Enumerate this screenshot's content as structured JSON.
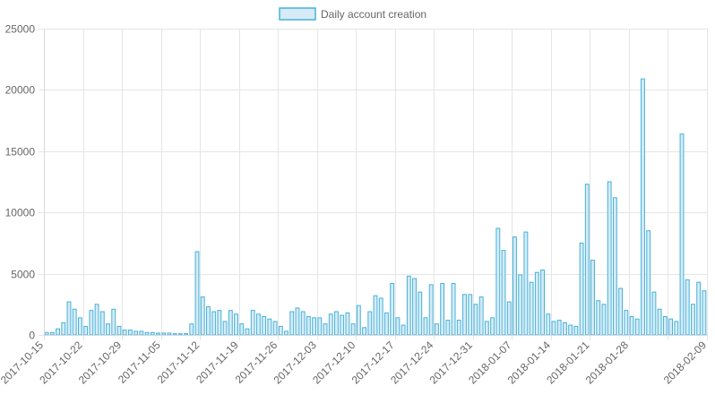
{
  "chart_data": {
    "type": "bar",
    "legend": {
      "position": "top",
      "label": "Daily account creation"
    },
    "colors": {
      "bar_fill": "#d6ebf7",
      "bar_stroke": "#45b2d9",
      "grid": "#e5e5e5",
      "text": "#666666"
    },
    "grid": true,
    "start_date": "2017-10-15",
    "x_tick_labels": [
      "2017-10-15",
      "2017-10-22",
      "2017-10-29",
      "2017-11-05",
      "2017-11-12",
      "2017-11-19",
      "2017-11-26",
      "2017-12-03",
      "2017-12-10",
      "2017-12-17",
      "2017-12-24",
      "2017-12-31",
      "2018-01-07",
      "2018-01-14",
      "2018-01-21",
      "2018-01-28",
      "2018-02-09"
    ],
    "ylim": [
      0,
      25000
    ],
    "y_ticks": [
      "0",
      "5000",
      "10000",
      "15000",
      "20000",
      "25000"
    ],
    "values": [
      200,
      200,
      500,
      1000,
      2700,
      2100,
      1400,
      700,
      2000,
      2500,
      1900,
      900,
      2100,
      700,
      400,
      400,
      300,
      300,
      200,
      200,
      150,
      150,
      150,
      100,
      100,
      100,
      900,
      6800,
      3100,
      2300,
      1900,
      2000,
      1100,
      2000,
      1700,
      900,
      500,
      2000,
      1700,
      1500,
      1300,
      1100,
      700,
      300,
      1900,
      2200,
      1900,
      1500,
      1400,
      1400,
      900,
      1700,
      1900,
      1600,
      1800,
      900,
      2400,
      600,
      1900,
      3200,
      3000,
      1800,
      4200,
      1400,
      800,
      4800,
      4600,
      3500,
      1400,
      4100,
      900,
      4200,
      1200,
      4200,
      1200,
      3300,
      3300,
      2500,
      3100,
      1100,
      1400,
      8700,
      6900,
      2700,
      8000,
      4900,
      8400,
      4300,
      5100,
      5300,
      1700,
      1100,
      1200,
      1000,
      800,
      700,
      7500,
      12300,
      6100,
      2800,
      2500,
      12500,
      11200,
      3800,
      2000,
      1500,
      1300,
      20900,
      8500,
      3500,
      2100,
      1500,
      1300,
      1100,
      16400,
      4500,
      2500,
      4300,
      3600
    ]
  }
}
